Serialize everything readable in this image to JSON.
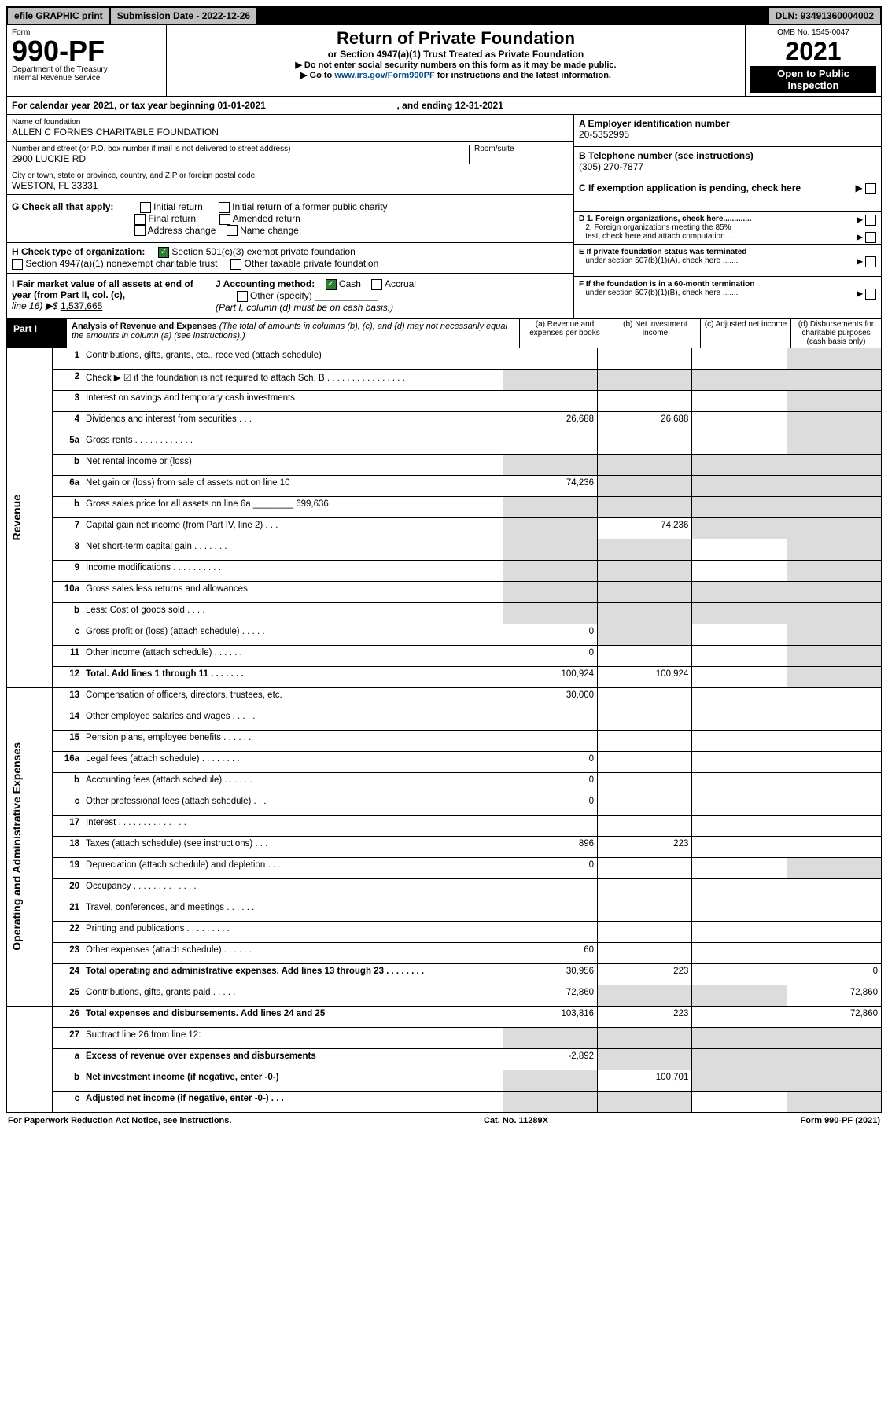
{
  "topbar": {
    "efile": "efile GRAPHIC print",
    "subdate_label": "Submission Date - ",
    "subdate_val": "2022-12-26",
    "dln_label": "DLN: ",
    "dln_val": "93491360004002"
  },
  "header": {
    "form_label": "Form",
    "form_number": "990-PF",
    "dept": "Department of the Treasury",
    "irs": "Internal Revenue Service",
    "title": "Return of Private Foundation",
    "subtitle": "or Section 4947(a)(1) Trust Treated as Private Foundation",
    "note1": "▶ Do not enter social security numbers on this form as it may be made public.",
    "note2_pre": "▶ Go to ",
    "note2_link": "www.irs.gov/Form990PF",
    "note2_post": " for instructions and the latest information.",
    "omb": "OMB No. 1545-0047",
    "year": "2021",
    "open": "Open to Public Inspection"
  },
  "calyear": {
    "text": "For calendar year 2021, or tax year beginning 01-01-2021",
    "ending": ", and ending 12-31-2021"
  },
  "ident": {
    "name_label": "Name of foundation",
    "name_val": "ALLEN C FORNES CHARITABLE FOUNDATION",
    "addr_label": "Number and street (or P.O. box number if mail is not delivered to street address)",
    "addr_val": "2900 LUCKIE RD",
    "room_label": "Room/suite",
    "city_label": "City or town, state or province, country, and ZIP or foreign postal code",
    "city_val": "WESTON, FL  33331",
    "A_label": "A Employer identification number",
    "A_val": "20-5352995",
    "B_label": "B Telephone number (see instructions)",
    "B_val": "(305) 270-7877",
    "C_label": "C If exemption application is pending, check here",
    "D1": "D 1. Foreign organizations, check here.............",
    "D2a": "2. Foreign organizations meeting the 85%",
    "D2b": "test, check here and attach computation ...",
    "E1": "E  If private foundation status was terminated",
    "E2": "under section 507(b)(1)(A), check here .......",
    "F1": "F  If the foundation is in a 60-month termination",
    "F2": "under section 507(b)(1)(B), check here .......",
    "G_label": "G Check all that apply:",
    "G_opts": [
      "Initial return",
      "Initial return of a former public charity",
      "Final return",
      "Amended return",
      "Address change",
      "Name change"
    ],
    "H_label": "H Check type of organization:",
    "H_501c3": "Section 501(c)(3) exempt private foundation",
    "H_4947": "Section 4947(a)(1) nonexempt charitable trust",
    "H_other": "Other taxable private foundation",
    "I_label": "I Fair market value of all assets at end of year (from Part II, col. (c),",
    "I_line16": "line 16) ▶$ ",
    "I_val": "1,537,665",
    "J_label": "J Accounting method:",
    "J_cash": "Cash",
    "J_accrual": "Accrual",
    "J_other": "Other (specify)",
    "J_note": "(Part I, column (d) must be on cash basis.)"
  },
  "part1": {
    "label": "Part I",
    "title": "Analysis of Revenue and Expenses",
    "subtitle": " (The total of amounts in columns (b), (c), and (d) may not necessarily equal the amounts in column (a) (see instructions).)",
    "col_a": "(a)   Revenue and expenses per books",
    "col_b": "(b)   Net investment income",
    "col_c": "(c)   Adjusted net income",
    "col_d": "(d)   Disbursements for charitable purposes (cash basis only)"
  },
  "sidelabels": {
    "revenue": "Revenue",
    "expenses": "Operating and Administrative Expenses"
  },
  "rows": [
    {
      "n": "1",
      "d": "Contributions, gifts, grants, etc., received (attach schedule)",
      "a": "",
      "b": "",
      "c": "",
      "dcol": "",
      "g": [
        0,
        0,
        0,
        1
      ]
    },
    {
      "n": "2",
      "d": "Check ▶ ☑ if the foundation is not required to attach Sch. B   .  .  .  .  .  .  .  .  .  .  .  .  .  .  .  .",
      "a": "",
      "b": "",
      "c": "",
      "dcol": "",
      "g": [
        1,
        1,
        1,
        1
      ]
    },
    {
      "n": "3",
      "d": "Interest on savings and temporary cash investments",
      "a": "",
      "b": "",
      "c": "",
      "dcol": "",
      "g": [
        0,
        0,
        0,
        1
      ]
    },
    {
      "n": "4",
      "d": "Dividends and interest from securities  .  .  .",
      "a": "26,688",
      "b": "26,688",
      "c": "",
      "dcol": "",
      "g": [
        0,
        0,
        0,
        1
      ]
    },
    {
      "n": "5a",
      "d": "Gross rents  .  .  .  .  .  .  .  .  .  .  .  .",
      "a": "",
      "b": "",
      "c": "",
      "dcol": "",
      "g": [
        0,
        0,
        0,
        1
      ]
    },
    {
      "n": "b",
      "d": "Net rental income or (loss)  ",
      "a": "",
      "b": "",
      "c": "",
      "dcol": "",
      "g": [
        1,
        1,
        1,
        1
      ]
    },
    {
      "n": "6a",
      "d": "Net gain or (loss) from sale of assets not on line 10",
      "a": "74,236",
      "b": "",
      "c": "",
      "dcol": "",
      "g": [
        0,
        1,
        1,
        1
      ]
    },
    {
      "n": "b",
      "d": "Gross sales price for all assets on line 6a ________ 699,636",
      "a": "",
      "b": "",
      "c": "",
      "dcol": "",
      "g": [
        1,
        1,
        1,
        1
      ]
    },
    {
      "n": "7",
      "d": "Capital gain net income (from Part IV, line 2)  .  .  .",
      "a": "",
      "b": "74,236",
      "c": "",
      "dcol": "",
      "g": [
        1,
        0,
        1,
        1
      ]
    },
    {
      "n": "8",
      "d": "Net short-term capital gain  .  .  .  .  .  .  .",
      "a": "",
      "b": "",
      "c": "",
      "dcol": "",
      "g": [
        1,
        1,
        0,
        1
      ]
    },
    {
      "n": "9",
      "d": "Income modifications .  .  .  .  .  .  .  .  .  .",
      "a": "",
      "b": "",
      "c": "",
      "dcol": "",
      "g": [
        1,
        1,
        0,
        1
      ]
    },
    {
      "n": "10a",
      "d": "Gross sales less returns and allowances",
      "a": "",
      "b": "",
      "c": "",
      "dcol": "",
      "g": [
        1,
        1,
        1,
        1
      ]
    },
    {
      "n": "b",
      "d": "Less: Cost of goods sold  .  .  .  .",
      "a": "",
      "b": "",
      "c": "",
      "dcol": "",
      "g": [
        1,
        1,
        1,
        1
      ]
    },
    {
      "n": "c",
      "d": "Gross profit or (loss) (attach schedule)  .  .  .  .  .",
      "a": "0",
      "b": "",
      "c": "",
      "dcol": "",
      "g": [
        0,
        1,
        0,
        1
      ]
    },
    {
      "n": "11",
      "d": "Other income (attach schedule)  .  .  .  .  .  .",
      "a": "0",
      "b": "",
      "c": "",
      "dcol": "",
      "g": [
        0,
        0,
        0,
        1
      ]
    },
    {
      "n": "12",
      "d": "Total. Add lines 1 through 11  .  .  .  .  .  .  .",
      "a": "100,924",
      "b": "100,924",
      "c": "",
      "dcol": "",
      "bold": true,
      "g": [
        0,
        0,
        0,
        1
      ]
    },
    {
      "n": "13",
      "d": "Compensation of officers, directors, trustees, etc.",
      "a": "30,000",
      "b": "",
      "c": "",
      "dcol": "",
      "g": [
        0,
        0,
        0,
        0
      ]
    },
    {
      "n": "14",
      "d": "Other employee salaries and wages  .  .  .  .  .",
      "a": "",
      "b": "",
      "c": "",
      "dcol": "",
      "g": [
        0,
        0,
        0,
        0
      ]
    },
    {
      "n": "15",
      "d": "Pension plans, employee benefits .  .  .  .  .  .",
      "a": "",
      "b": "",
      "c": "",
      "dcol": "",
      "g": [
        0,
        0,
        0,
        0
      ]
    },
    {
      "n": "16a",
      "d": "Legal fees (attach schedule) .  .  .  .  .  .  .  .",
      "a": "0",
      "b": "",
      "c": "",
      "dcol": "",
      "g": [
        0,
        0,
        0,
        0
      ]
    },
    {
      "n": "b",
      "d": "Accounting fees (attach schedule) .  .  .  .  .  .",
      "a": "0",
      "b": "",
      "c": "",
      "dcol": "",
      "g": [
        0,
        0,
        0,
        0
      ]
    },
    {
      "n": "c",
      "d": "Other professional fees (attach schedule)  .  .  .",
      "a": "0",
      "b": "",
      "c": "",
      "dcol": "",
      "g": [
        0,
        0,
        0,
        0
      ]
    },
    {
      "n": "17",
      "d": "Interest .  .  .  .  .  .  .  .  .  .  .  .  .  .",
      "a": "",
      "b": "",
      "c": "",
      "dcol": "",
      "g": [
        0,
        0,
        0,
        0
      ]
    },
    {
      "n": "18",
      "d": "Taxes (attach schedule) (see instructions)  .  .  .",
      "a": "896",
      "b": "223",
      "c": "",
      "dcol": "",
      "g": [
        0,
        0,
        0,
        0
      ]
    },
    {
      "n": "19",
      "d": "Depreciation (attach schedule) and depletion  .  .  .",
      "a": "0",
      "b": "",
      "c": "",
      "dcol": "",
      "g": [
        0,
        0,
        0,
        1
      ]
    },
    {
      "n": "20",
      "d": "Occupancy .  .  .  .  .  .  .  .  .  .  .  .  .",
      "a": "",
      "b": "",
      "c": "",
      "dcol": "",
      "g": [
        0,
        0,
        0,
        0
      ]
    },
    {
      "n": "21",
      "d": "Travel, conferences, and meetings .  .  .  .  .  .",
      "a": "",
      "b": "",
      "c": "",
      "dcol": "",
      "g": [
        0,
        0,
        0,
        0
      ]
    },
    {
      "n": "22",
      "d": "Printing and publications .  .  .  .  .  .  .  .  .",
      "a": "",
      "b": "",
      "c": "",
      "dcol": "",
      "g": [
        0,
        0,
        0,
        0
      ]
    },
    {
      "n": "23",
      "d": "Other expenses (attach schedule) .  .  .  .  .  .",
      "a": "60",
      "b": "",
      "c": "",
      "dcol": "",
      "g": [
        0,
        0,
        0,
        0
      ]
    },
    {
      "n": "24",
      "d": "Total operating and administrative expenses. Add lines 13 through 23  .  .  .  .  .  .  .  .",
      "a": "30,956",
      "b": "223",
      "c": "",
      "dcol": "0",
      "bold": true,
      "g": [
        0,
        0,
        0,
        0
      ]
    },
    {
      "n": "25",
      "d": "Contributions, gifts, grants paid  .  .  .  .  .",
      "a": "72,860",
      "b": "",
      "c": "",
      "dcol": "72,860",
      "g": [
        0,
        1,
        1,
        0
      ]
    },
    {
      "n": "26",
      "d": "Total expenses and disbursements. Add lines 24 and 25",
      "a": "103,816",
      "b": "223",
      "c": "",
      "dcol": "72,860",
      "bold": true,
      "g": [
        0,
        0,
        0,
        0
      ]
    },
    {
      "n": "27",
      "d": "Subtract line 26 from line 12:",
      "a": "",
      "b": "",
      "c": "",
      "dcol": "",
      "g": [
        1,
        1,
        1,
        1
      ]
    },
    {
      "n": "a",
      "d": "Excess of revenue over expenses and disbursements",
      "a": "-2,892",
      "b": "",
      "c": "",
      "dcol": "",
      "bold": true,
      "g": [
        0,
        1,
        1,
        1
      ]
    },
    {
      "n": "b",
      "d": "Net investment income (if negative, enter -0-)",
      "a": "",
      "b": "100,701",
      "c": "",
      "dcol": "",
      "bold": true,
      "g": [
        1,
        0,
        1,
        1
      ]
    },
    {
      "n": "c",
      "d": "Adjusted net income (if negative, enter -0-)  .  .  .",
      "a": "",
      "b": "",
      "c": "",
      "dcol": "",
      "bold": true,
      "g": [
        1,
        1,
        0,
        1
      ]
    }
  ],
  "footer": {
    "left": "For Paperwork Reduction Act Notice, see instructions.",
    "mid": "Cat. No. 11289X",
    "right": "Form 990-PF (2021)"
  }
}
